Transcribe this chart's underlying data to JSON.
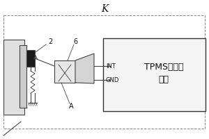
{
  "background_color": "#ffffff",
  "title_label": "K",
  "label_2": "2",
  "label_6": "6",
  "label_A": "A",
  "label_INT": "INT",
  "label_GND": "GND",
  "tpms_line1": "TPMS传感器",
  "tpms_line2": "电路",
  "line_color": "#444444",
  "dark_color": "#222222",
  "light_gray": "#d0d0d0",
  "mid_gray": "#aaaaaa"
}
